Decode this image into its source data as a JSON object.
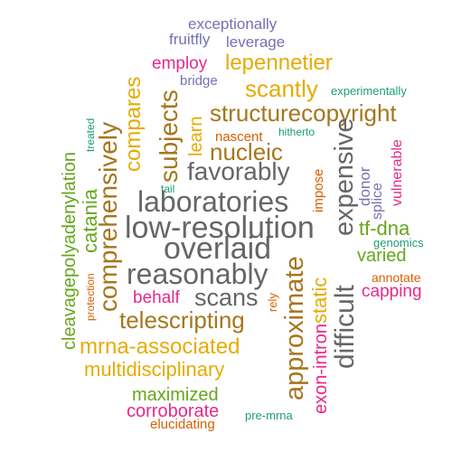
{
  "words": [
    {
      "text": "exceptionally",
      "color": "#7570b3"
    },
    {
      "text": "fruitfly",
      "color": "#7570b3"
    },
    {
      "text": "leverage",
      "color": "#7570b3"
    },
    {
      "text": "employ",
      "color": "#e7298a"
    },
    {
      "text": "lepennetier",
      "color": "#e6ab02"
    },
    {
      "text": "bridge",
      "color": "#7570b3"
    },
    {
      "text": "scantly",
      "color": "#e6ab02"
    },
    {
      "text": "experimentally",
      "color": "#1b9e77"
    },
    {
      "text": "compares",
      "color": "#e6ab02"
    },
    {
      "text": "subjects",
      "color": "#a6761d"
    },
    {
      "text": "learn",
      "color": "#e6ab02"
    },
    {
      "text": "structurecopyright",
      "color": "#a6761d"
    },
    {
      "text": "comprehensively",
      "color": "#a6761d"
    },
    {
      "text": "nascent",
      "color": "#d95f02"
    },
    {
      "text": "hitherto",
      "color": "#1b9e77"
    },
    {
      "text": "nucleic",
      "color": "#a6761d"
    },
    {
      "text": "expensive",
      "color": "#666666"
    },
    {
      "text": "vulnerable",
      "color": "#e7298a"
    },
    {
      "text": "treated",
      "color": "#1b9e77"
    },
    {
      "text": "favorably",
      "color": "#666666"
    },
    {
      "text": "impose",
      "color": "#d95f02"
    },
    {
      "text": "donor",
      "color": "#7570b3"
    },
    {
      "text": "splice",
      "color": "#7570b3"
    },
    {
      "text": "tail",
      "color": "#1b9e77"
    },
    {
      "text": "cleavagepolyadenylation",
      "color": "#66a61e"
    },
    {
      "text": "catania",
      "color": "#66a61e"
    },
    {
      "text": "laboratories",
      "color": "#666666"
    },
    {
      "text": "low-resolution",
      "color": "#666666"
    },
    {
      "text": "tf-dna",
      "color": "#66a61e"
    },
    {
      "text": "genomics",
      "color": "#1b9e77"
    },
    {
      "text": "overlaid",
      "color": "#666666"
    },
    {
      "text": "varied",
      "color": "#66a61e"
    },
    {
      "text": "approximate",
      "color": "#a6761d"
    },
    {
      "text": "static",
      "color": "#e6ab02"
    },
    {
      "text": "difficult",
      "color": "#666666"
    },
    {
      "text": "reasonably",
      "color": "#666666"
    },
    {
      "text": "annotate",
      "color": "#d95f02"
    },
    {
      "text": "protection",
      "color": "#d95f02"
    },
    {
      "text": "capping",
      "color": "#e7298a"
    },
    {
      "text": "behalf",
      "color": "#e7298a"
    },
    {
      "text": "scans",
      "color": "#666666"
    },
    {
      "text": "rely",
      "color": "#d95f02"
    },
    {
      "text": "telescripting",
      "color": "#a6761d"
    },
    {
      "text": "exon-intron",
      "color": "#e7298a"
    },
    {
      "text": "mrna-associated",
      "color": "#e6ab02"
    },
    {
      "text": "multidisciplinary",
      "color": "#e6ab02"
    },
    {
      "text": "maximized",
      "color": "#66a61e"
    },
    {
      "text": "corroborate",
      "color": "#e7298a"
    },
    {
      "text": "pre-mrna",
      "color": "#1b9e77"
    },
    {
      "text": "elucidating",
      "color": "#d95f02"
    }
  ]
}
